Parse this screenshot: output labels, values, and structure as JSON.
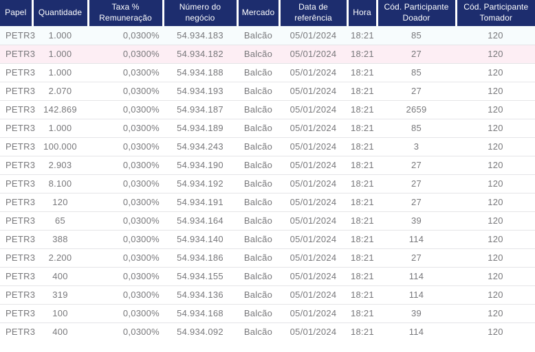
{
  "table": {
    "columns": [
      {
        "label": "Papel"
      },
      {
        "label": "Quantidade"
      },
      {
        "label": "Taxa % Remuneração"
      },
      {
        "label": "Número do negócio"
      },
      {
        "label": "Mercado"
      },
      {
        "label": "Data de referência"
      },
      {
        "label": "Hora"
      },
      {
        "label": "Cód. Participante Doador"
      },
      {
        "label": "Cód. Participante Tomador"
      }
    ],
    "rows": [
      [
        "PETR3",
        "1.000",
        "0,0300%",
        "54.934.183",
        "Balcão",
        "05/01/2024",
        "18:21",
        "85",
        "120"
      ],
      [
        "PETR3",
        "1.000",
        "0,0300%",
        "54.934.182",
        "Balcão",
        "05/01/2024",
        "18:21",
        "27",
        "120"
      ],
      [
        "PETR3",
        "1.000",
        "0,0300%",
        "54.934.188",
        "Balcão",
        "05/01/2024",
        "18:21",
        "85",
        "120"
      ],
      [
        "PETR3",
        "2.070",
        "0,0300%",
        "54.934.193",
        "Balcão",
        "05/01/2024",
        "18:21",
        "27",
        "120"
      ],
      [
        "PETR3",
        "142.869",
        "0,0300%",
        "54.934.187",
        "Balcão",
        "05/01/2024",
        "18:21",
        "2659",
        "120"
      ],
      [
        "PETR3",
        "1.000",
        "0,0300%",
        "54.934.189",
        "Balcão",
        "05/01/2024",
        "18:21",
        "85",
        "120"
      ],
      [
        "PETR3",
        "100.000",
        "0,0300%",
        "54.934.243",
        "Balcão",
        "05/01/2024",
        "18:21",
        "3",
        "120"
      ],
      [
        "PETR3",
        "2.903",
        "0,0300%",
        "54.934.190",
        "Balcão",
        "05/01/2024",
        "18:21",
        "27",
        "120"
      ],
      [
        "PETR3",
        "8.100",
        "0,0300%",
        "54.934.192",
        "Balcão",
        "05/01/2024",
        "18:21",
        "27",
        "120"
      ],
      [
        "PETR3",
        "120",
        "0,0300%",
        "54.934.191",
        "Balcão",
        "05/01/2024",
        "18:21",
        "27",
        "120"
      ],
      [
        "PETR3",
        "65",
        "0,0300%",
        "54.934.164",
        "Balcão",
        "05/01/2024",
        "18:21",
        "39",
        "120"
      ],
      [
        "PETR3",
        "388",
        "0,0300%",
        "54.934.140",
        "Balcão",
        "05/01/2024",
        "18:21",
        "114",
        "120"
      ],
      [
        "PETR3",
        "2.200",
        "0,0300%",
        "54.934.186",
        "Balcão",
        "05/01/2024",
        "18:21",
        "27",
        "120"
      ],
      [
        "PETR3",
        "400",
        "0,0300%",
        "54.934.155",
        "Balcão",
        "05/01/2024",
        "18:21",
        "114",
        "120"
      ],
      [
        "PETR3",
        "319",
        "0,0300%",
        "54.934.136",
        "Balcão",
        "05/01/2024",
        "18:21",
        "114",
        "120"
      ],
      [
        "PETR3",
        "100",
        "0,0300%",
        "54.934.168",
        "Balcão",
        "05/01/2024",
        "18:21",
        "39",
        "120"
      ],
      [
        "PETR3",
        "400",
        "0,0300%",
        "54.934.092",
        "Balcão",
        "05/01/2024",
        "18:21",
        "114",
        "120"
      ]
    ]
  },
  "colors": {
    "header_bg": "#1d2d6e",
    "header_text": "#ffffff",
    "body_text": "#77777a",
    "row_divider": "#e4e4e7",
    "row_tint_pink": "#fdeef4",
    "row_tint_blue": "#f7fcfd"
  }
}
